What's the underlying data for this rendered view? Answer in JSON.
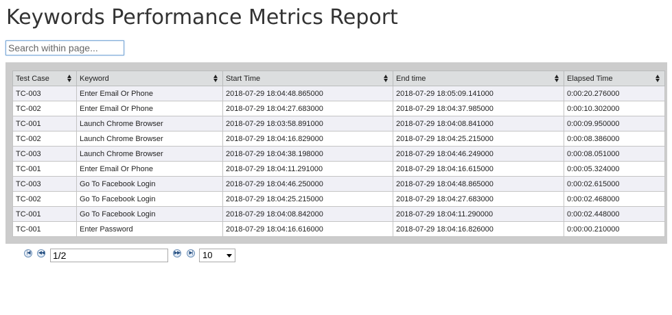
{
  "title": "Keywords Performance Metrics Report",
  "search": {
    "placeholder": "Search within page..."
  },
  "table": {
    "columns": [
      "Test Case",
      "Keyword",
      "Start Time",
      "End time",
      "Elapsed Time"
    ],
    "rows": [
      [
        "TC-003",
        "Enter Email Or Phone",
        "2018-07-29 18:04:48.865000",
        "2018-07-29 18:05:09.141000",
        "0:00:20.276000"
      ],
      [
        "TC-002",
        "Enter Email Or Phone",
        "2018-07-29 18:04:27.683000",
        "2018-07-29 18:04:37.985000",
        "0:00:10.302000"
      ],
      [
        "TC-001",
        "Launch Chrome Browser",
        "2018-07-29 18:03:58.891000",
        "2018-07-29 18:04:08.841000",
        "0:00:09.950000"
      ],
      [
        "TC-002",
        "Launch Chrome Browser",
        "2018-07-29 18:04:16.829000",
        "2018-07-29 18:04:25.215000",
        "0:00:08.386000"
      ],
      [
        "TC-003",
        "Launch Chrome Browser",
        "2018-07-29 18:04:38.198000",
        "2018-07-29 18:04:46.249000",
        "0:00:08.051000"
      ],
      [
        "TC-001",
        "Enter Email Or Phone",
        "2018-07-29 18:04:11.291000",
        "2018-07-29 18:04:16.615000",
        "0:00:05.324000"
      ],
      [
        "TC-003",
        "Go To Facebook Login",
        "2018-07-29 18:04:46.250000",
        "2018-07-29 18:04:48.865000",
        "0:00:02.615000"
      ],
      [
        "TC-002",
        "Go To Facebook Login",
        "2018-07-29 18:04:25.215000",
        "2018-07-29 18:04:27.683000",
        "0:00:02.468000"
      ],
      [
        "TC-001",
        "Go To Facebook Login",
        "2018-07-29 18:04:08.842000",
        "2018-07-29 18:04:11.290000",
        "0:00:02.448000"
      ],
      [
        "TC-001",
        "Enter Password",
        "2018-07-29 18:04:16.616000",
        "2018-07-29 18:04:16.826000",
        "0:00:00.210000"
      ]
    ]
  },
  "pager": {
    "page_value": "1/2",
    "page_size": "10",
    "icons": [
      "first-page-icon",
      "previous-page-icon",
      "next-page-icon",
      "last-page-icon"
    ]
  },
  "colors": {
    "table_frame": "#cccccc",
    "header_bg": "#dcdedf",
    "row_alt": "#f0f0f6",
    "title": "#333333"
  }
}
